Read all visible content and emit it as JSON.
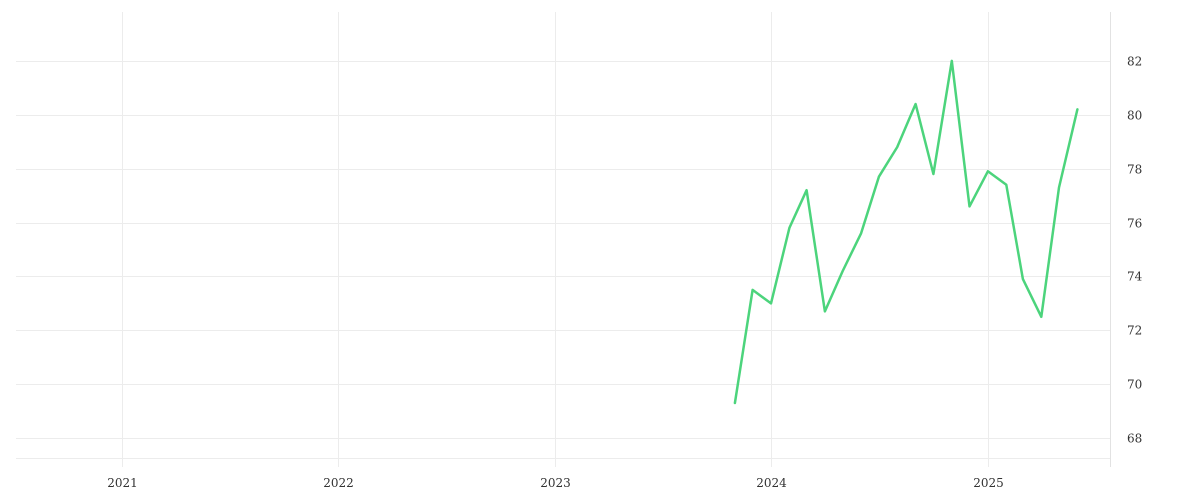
{
  "chart_data": {
    "type": "line",
    "title": "",
    "xlabel": "",
    "ylabel": "",
    "x_ticks": [
      "2021",
      "2022",
      "2023",
      "2024",
      "2025"
    ],
    "y_ticks": [
      68,
      70,
      72,
      74,
      76,
      78,
      80,
      82
    ],
    "ylim": [
      67,
      84
    ],
    "xlim": [
      "2020-07-06",
      "2025-07-26"
    ],
    "y_axis_position": "right",
    "grid": true,
    "series": [
      {
        "color": "#4cd47c",
        "points": [
          {
            "x": "2023-11-01",
            "y": 69.3
          },
          {
            "x": "2023-12-01",
            "y": 73.5
          },
          {
            "x": "2024-01-01",
            "y": 73.0
          },
          {
            "x": "2024-02-01",
            "y": 75.8
          },
          {
            "x": "2024-03-01",
            "y": 77.2
          },
          {
            "x": "2024-04-01",
            "y": 72.7
          },
          {
            "x": "2024-05-01",
            "y": 74.2
          },
          {
            "x": "2024-06-01",
            "y": 75.6
          },
          {
            "x": "2024-07-01",
            "y": 77.7
          },
          {
            "x": "2024-08-01",
            "y": 78.8
          },
          {
            "x": "2024-09-01",
            "y": 80.4
          },
          {
            "x": "2024-10-01",
            "y": 77.8
          },
          {
            "x": "2024-11-01",
            "y": 82.0
          },
          {
            "x": "2024-12-01",
            "y": 76.6
          },
          {
            "x": "2025-01-01",
            "y": 77.9
          },
          {
            "x": "2025-02-01",
            "y": 77.4
          },
          {
            "x": "2025-03-01",
            "y": 73.9
          },
          {
            "x": "2025-04-01",
            "y": 72.5
          },
          {
            "x": "2025-05-01",
            "y": 77.3
          },
          {
            "x": "2025-06-01",
            "y": 80.2
          }
        ]
      }
    ]
  }
}
